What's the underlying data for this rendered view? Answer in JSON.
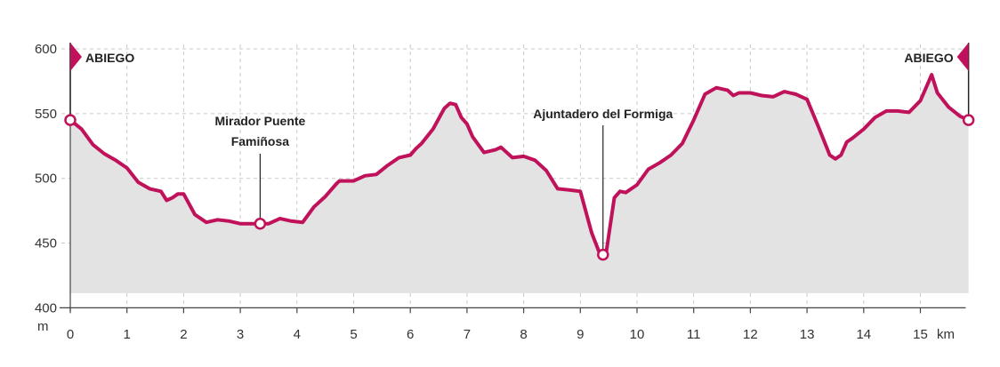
{
  "chart_data": {
    "type": "area",
    "title": "",
    "xlabel": "km",
    "ylabel": "m",
    "xlim": [
      0,
      15.8
    ],
    "ylim": [
      400,
      600
    ],
    "x_ticks": [
      0,
      1,
      2,
      3,
      4,
      5,
      6,
      7,
      8,
      9,
      10,
      11,
      12,
      13,
      14,
      15
    ],
    "x_tick_labels": [
      "0",
      "1",
      "2",
      "3",
      "4",
      "5",
      "6",
      "7",
      "8",
      "9",
      "10",
      "11",
      "12",
      "13",
      "14",
      "15"
    ],
    "y_ticks": [
      600,
      550,
      500,
      450,
      400
    ],
    "y_tick_labels": [
      "600",
      "550",
      "500",
      "450",
      "400"
    ],
    "grid": true,
    "line_color": "#c0125a",
    "fill_color": "#e3e3e3",
    "grid_color": "#c8c8c8",
    "series": [
      {
        "x": [
          0,
          0.2,
          0.4,
          0.6,
          0.8,
          1.0,
          1.2,
          1.4,
          1.6,
          1.7,
          1.8,
          1.9,
          2.0,
          2.2,
          2.4,
          2.6,
          2.8,
          3.0,
          3.2,
          3.35,
          3.5,
          3.7,
          3.9,
          4.1,
          4.3,
          4.5,
          4.7,
          4.75,
          5.0,
          5.2,
          5.4,
          5.6,
          5.8,
          6.0,
          6.1,
          6.2,
          6.4,
          6.6,
          6.7,
          6.8,
          6.9,
          7.0,
          7.1,
          7.3,
          7.5,
          7.6,
          7.8,
          8.0,
          8.2,
          8.4,
          8.6,
          8.8,
          9.0,
          9.2,
          9.35,
          9.45,
          9.6,
          9.7,
          9.8,
          10.0,
          10.2,
          10.4,
          10.6,
          10.8,
          11.0,
          11.2,
          11.4,
          11.6,
          11.7,
          11.8,
          12.0,
          12.2,
          12.4,
          12.6,
          12.8,
          13.0,
          13.2,
          13.4,
          13.5,
          13.6,
          13.7,
          13.8,
          14.0,
          14.2,
          14.4,
          14.6,
          14.8,
          15.0,
          15.1,
          15.2,
          15.3,
          15.5,
          15.7,
          15.85
        ],
        "y": [
          545,
          538,
          526,
          519,
          514,
          508,
          497,
          492,
          490,
          483,
          485,
          488,
          488,
          472,
          466,
          468,
          467,
          465,
          465,
          465,
          465,
          469,
          467,
          466,
          478,
          486,
          496,
          498,
          498,
          502,
          503,
          510,
          516,
          518,
          523,
          527,
          538,
          554,
          558,
          557,
          547,
          542,
          532,
          520,
          522,
          524,
          516,
          517,
          514,
          506,
          492,
          491,
          490,
          458,
          441,
          441,
          485,
          490,
          489,
          495,
          507,
          512,
          518,
          527,
          545,
          565,
          570,
          568,
          564,
          566,
          566,
          564,
          563,
          567,
          565,
          561,
          540,
          518,
          515,
          518,
          528,
          531,
          538,
          547,
          552,
          552,
          551,
          560,
          570,
          580,
          566,
          555,
          548,
          545
        ]
      }
    ],
    "annotations": [
      {
        "label": "ABIEGO",
        "x": 0,
        "y": 545,
        "flag": "right"
      },
      {
        "label": "Mirador Puente",
        "label2": "Famiñosa",
        "x": 3.35,
        "y": 465
      },
      {
        "label": "Ajuntadero del Formiga",
        "x": 9.4,
        "y": 441
      },
      {
        "label": "ABIEGO",
        "x": 15.85,
        "y": 545,
        "flag": "left"
      }
    ]
  }
}
